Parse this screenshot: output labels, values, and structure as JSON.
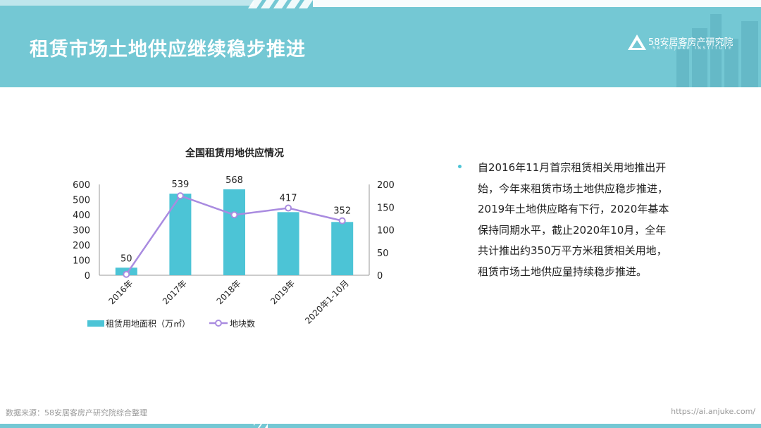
{
  "header": {
    "title": "租赁市场土地供应继续稳步推进",
    "logo_name": "58安居客房产研究院",
    "logo_sub": "58 ANJUKE INSTITUTE",
    "bg_color": "#74c8d4"
  },
  "chart_data": {
    "type": "bar",
    "title": "全国租赁用地供应情况",
    "categories": [
      "2016年",
      "2017年",
      "2018年",
      "2019年",
      "2020年1-10月"
    ],
    "series": [
      {
        "name": "租赁用地面积（万㎡）",
        "type": "bar",
        "axis": "left",
        "values": [
          50,
          539,
          568,
          417,
          352
        ],
        "color": "#4cc4d6"
      },
      {
        "name": "地块数",
        "type": "line",
        "axis": "right",
        "values": [
          2,
          175,
          133,
          148,
          120
        ],
        "color": "#a98be0"
      }
    ],
    "y_left": {
      "min": 0,
      "max": 600,
      "ticks": [
        0,
        100,
        200,
        300,
        400,
        500,
        600
      ]
    },
    "y_right": {
      "min": 0,
      "max": 200,
      "ticks": [
        0,
        50,
        100,
        150,
        200
      ]
    },
    "data_labels": [
      "50",
      "539",
      "568",
      "417",
      "352"
    ],
    "legend_position": "bottom",
    "grid": false
  },
  "bullet": {
    "text": "自2016年11月首宗租赁相关用地推出开始，今年来租赁市场土地供应稳步推进，2019年土地供应略有下行，2020年基本保持同期水平，截止2020年10月，全年共计推出约350万平方米租赁相关用地，租赁市场土地供应量持续稳步推进。"
  },
  "footer": {
    "source": "数据来源：58安居客房产研究院综合整理",
    "url": "https://ai.anjuke.com/"
  }
}
